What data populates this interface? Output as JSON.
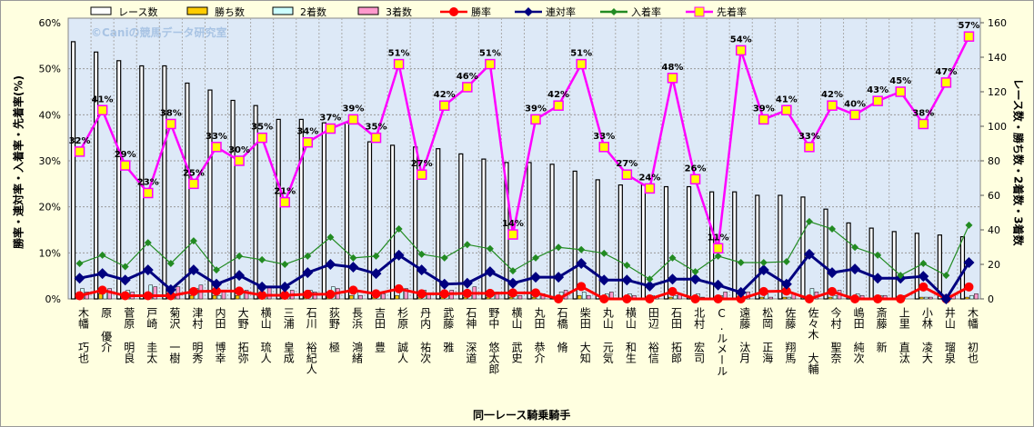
{
  "chart_data": {
    "type": "bar",
    "title": "",
    "watermark": "©Caniの競馬データ研究室",
    "xlabel": "同一レース騎乗騎手",
    "ylabel": "勝率・連対率・入着率・先着率(%)",
    "y2label": "レース数・勝ち数・2着数・3着数",
    "ylim": [
      0,
      60
    ],
    "y2lim": [
      0,
      160
    ],
    "yticks": [
      "0%",
      "10%",
      "20%",
      "30%",
      "40%",
      "50%",
      "60%"
    ],
    "y2ticks": [
      "0",
      "20",
      "40",
      "60",
      "80",
      "100",
      "120",
      "140",
      "160"
    ],
    "grid": true,
    "legend_position": "top",
    "categories": [
      "木幡 巧也",
      "原 優介",
      "菅原 明良",
      "戸崎 圭太",
      "菊沢 一樹",
      "津村 明秀",
      "内田 博幸",
      "大野 拓弥",
      "横山 琉人",
      "三浦 皇成",
      "石川 裕紀人",
      "荻野 極",
      "長浜 鴻緒",
      "吉田 豊",
      "杉原 誠人",
      "丹内 祐次",
      "武藤 雅",
      "石神 深道",
      "野中 悠太郎",
      "横山 武史",
      "丸田 恭介",
      "石橋 脩",
      "柴田 大知",
      "丸山 元気",
      "横山 和生",
      "田辺 裕信",
      "石田 拓郎",
      "北村 宏司",
      "C.ルメール",
      "遠藤 汰月",
      "松岡 正海",
      "佐藤 翔馬",
      "佐々木 大輔",
      "今村 聖奈",
      "嶋田 純次",
      "斎藤 新",
      "上里 直汰",
      "小林 凌大",
      "井山 瑠泉",
      "木幡 初也"
    ],
    "bar_series": [
      {
        "name": "レース数",
        "axis": "right",
        "color": "#ffffff",
        "values": [
          149,
          143,
          138,
          135,
          135,
          125,
          121,
          115,
          112,
          104,
          104,
          102,
          102,
          91,
          89,
          88,
          87,
          84,
          81,
          79,
          79,
          78,
          74,
          69,
          66,
          66,
          65,
          65,
          62,
          62,
          60,
          60,
          59,
          52,
          44,
          41,
          39,
          38,
          37,
          36
        ]
      },
      {
        "name": "勝ち数",
        "axis": "right",
        "color": "#ffcc00",
        "values": [
          1,
          3,
          1,
          1,
          1,
          2,
          2,
          2,
          1,
          1,
          1,
          1,
          2,
          1,
          2,
          1,
          1,
          1,
          1,
          1,
          1,
          0,
          2,
          0,
          0,
          0,
          1,
          0,
          0,
          0,
          1,
          1,
          0,
          1,
          0,
          0,
          0,
          1,
          0,
          1
        ]
      },
      {
        "name": "2着数",
        "axis": "right",
        "color": "#ccffff",
        "values": [
          6,
          5,
          5,
          8,
          2,
          6,
          2,
          4,
          2,
          2,
          5,
          7,
          5,
          4,
          6,
          5,
          2,
          2,
          4,
          2,
          3,
          4,
          4,
          3,
          3,
          2,
          2,
          3,
          2,
          1,
          3,
          1,
          6,
          2,
          3,
          2,
          2,
          1,
          0,
          2
        ]
      },
      {
        "name": "3着数",
        "axis": "right",
        "color": "#ff99cc",
        "values": [
          4,
          6,
          4,
          7,
          7,
          8,
          4,
          5,
          7,
          5,
          4,
          6,
          2,
          3,
          6,
          3,
          5,
          7,
          4,
          2,
          3,
          5,
          2,
          4,
          2,
          1,
          3,
          1,
          4,
          4,
          1,
          3,
          4,
          5,
          2,
          2,
          0,
          1,
          2,
          3
        ]
      }
    ],
    "line_series": [
      {
        "name": "勝率",
        "axis": "left",
        "color": "#ff0000",
        "marker": "circle",
        "values": [
          0.7,
          1.9,
          0.7,
          0.7,
          0.7,
          1.6,
          1.7,
          1.7,
          0.8,
          0.8,
          1.0,
          1.0,
          1.9,
          1.1,
          2.2,
          1.1,
          1.1,
          1.2,
          1.2,
          1.3,
          1.3,
          0,
          2.7,
          0,
          0,
          0,
          1.6,
          0,
          0,
          0,
          1.6,
          1.7,
          0,
          1.6,
          0,
          0,
          0,
          2.6,
          0,
          2.6
        ]
      },
      {
        "name": "連対率",
        "axis": "left",
        "color": "#000080",
        "marker": "diamond",
        "values": [
          4.5,
          5.5,
          4.1,
          6.3,
          2.0,
          6.3,
          3.2,
          5.1,
          2.6,
          2.6,
          5.7,
          7.5,
          6.9,
          5.5,
          9.5,
          6.3,
          3.2,
          3.4,
          5.9,
          3.4,
          4.7,
          4.7,
          7.7,
          4.1,
          4.1,
          2.8,
          4.3,
          4.3,
          3.0,
          1.4,
          6.3,
          3.2,
          9.7,
          5.7,
          6.5,
          4.5,
          4.5,
          4.9,
          0,
          7.9
        ]
      },
      {
        "name": "入着率",
        "axis": "left",
        "color": "#228b22",
        "marker": "diamond-small",
        "values": [
          7.7,
          9.5,
          7.0,
          12.2,
          7.7,
          12.6,
          6.3,
          9.3,
          8.5,
          7.5,
          9.3,
          13.4,
          8.9,
          9.3,
          15.2,
          9.7,
          8.9,
          11.8,
          10.9,
          6.1,
          8.9,
          11.2,
          10.7,
          9.9,
          7.3,
          4.3,
          8.9,
          5.9,
          9.3,
          7.9,
          7.9,
          8.1,
          16.8,
          15.2,
          11.2,
          9.5,
          5.1,
          7.7,
          5.1,
          16.0
        ]
      },
      {
        "name": "先着率",
        "axis": "left",
        "color": "#ff00ff",
        "marker": "square",
        "values": [
          32,
          41,
          29,
          23,
          38,
          25,
          33,
          30,
          35,
          21,
          34,
          37,
          39,
          35,
          51,
          27,
          42,
          46,
          51,
          14,
          39,
          42,
          51,
          33,
          27,
          24,
          48,
          26,
          11,
          54,
          39,
          41,
          33,
          42,
          40,
          43,
          45,
          38,
          47,
          57
        ],
        "labels": [
          "32%",
          "41%",
          "29%",
          "23%",
          "38%",
          "25%",
          "33%",
          "30%",
          "35%",
          "21%",
          "34%",
          "37%",
          "39%",
          "35%",
          "51%",
          "27%",
          "42%",
          "46%",
          "51%",
          "14%",
          "39%",
          "42%",
          "51%",
          "33%",
          "27%",
          "24%",
          "48%",
          "26%",
          "11%",
          "54%",
          "39%",
          "41%",
          "33%",
          "42%",
          "40%",
          "43%",
          "45%",
          "38%",
          "47%",
          "57%"
        ]
      }
    ]
  }
}
